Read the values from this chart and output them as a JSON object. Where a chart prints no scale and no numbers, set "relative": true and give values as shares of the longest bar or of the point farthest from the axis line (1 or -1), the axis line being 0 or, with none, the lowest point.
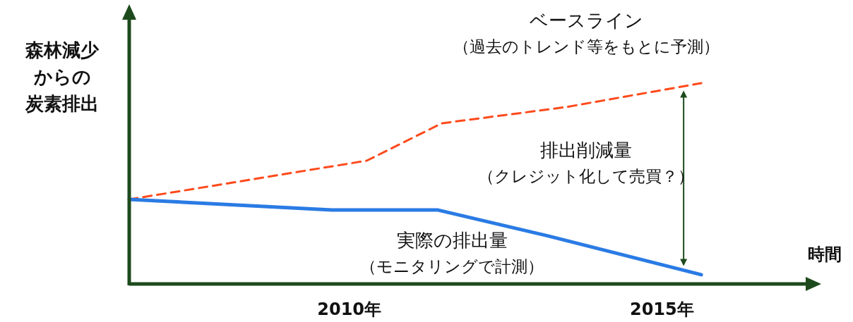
{
  "chart_data": {
    "type": "line",
    "relative": true,
    "xlabel": "時間",
    "ylabel": "森林減少からの炭素排出",
    "xlim": [
      2006.48,
      2017.3
    ],
    "xticks": [
      {
        "value": 2010,
        "label": "2010年"
      },
      {
        "value": 2015,
        "label": "2015年"
      }
    ],
    "tick_labels": "x",
    "marker": "none",
    "series": [
      {
        "color": "#ff4a1c",
        "line_style": "dashed",
        "x": [
          2006.48,
          2010.28,
          2011.48,
          2013.47,
          2015.63
        ],
        "values": [
          0.421,
          0.614,
          0.8,
          0.881,
          1.0
        ]
      },
      {
        "color": "#2a7be4",
        "line_style": "solid",
        "x": [
          2006.48,
          2009.72,
          2011.42,
          2013.18,
          2015.63
        ],
        "values": [
          0.421,
          0.368,
          0.368,
          0.239,
          0.046
        ]
      }
    ],
    "annotations": [
      "ベースライン",
      "（過去のトレンド等をもとに予測）",
      "排出削減量",
      "（クレジット化して売買？）",
      "実際の排出量",
      "（モニタリングで計測）"
    ]
  }
}
